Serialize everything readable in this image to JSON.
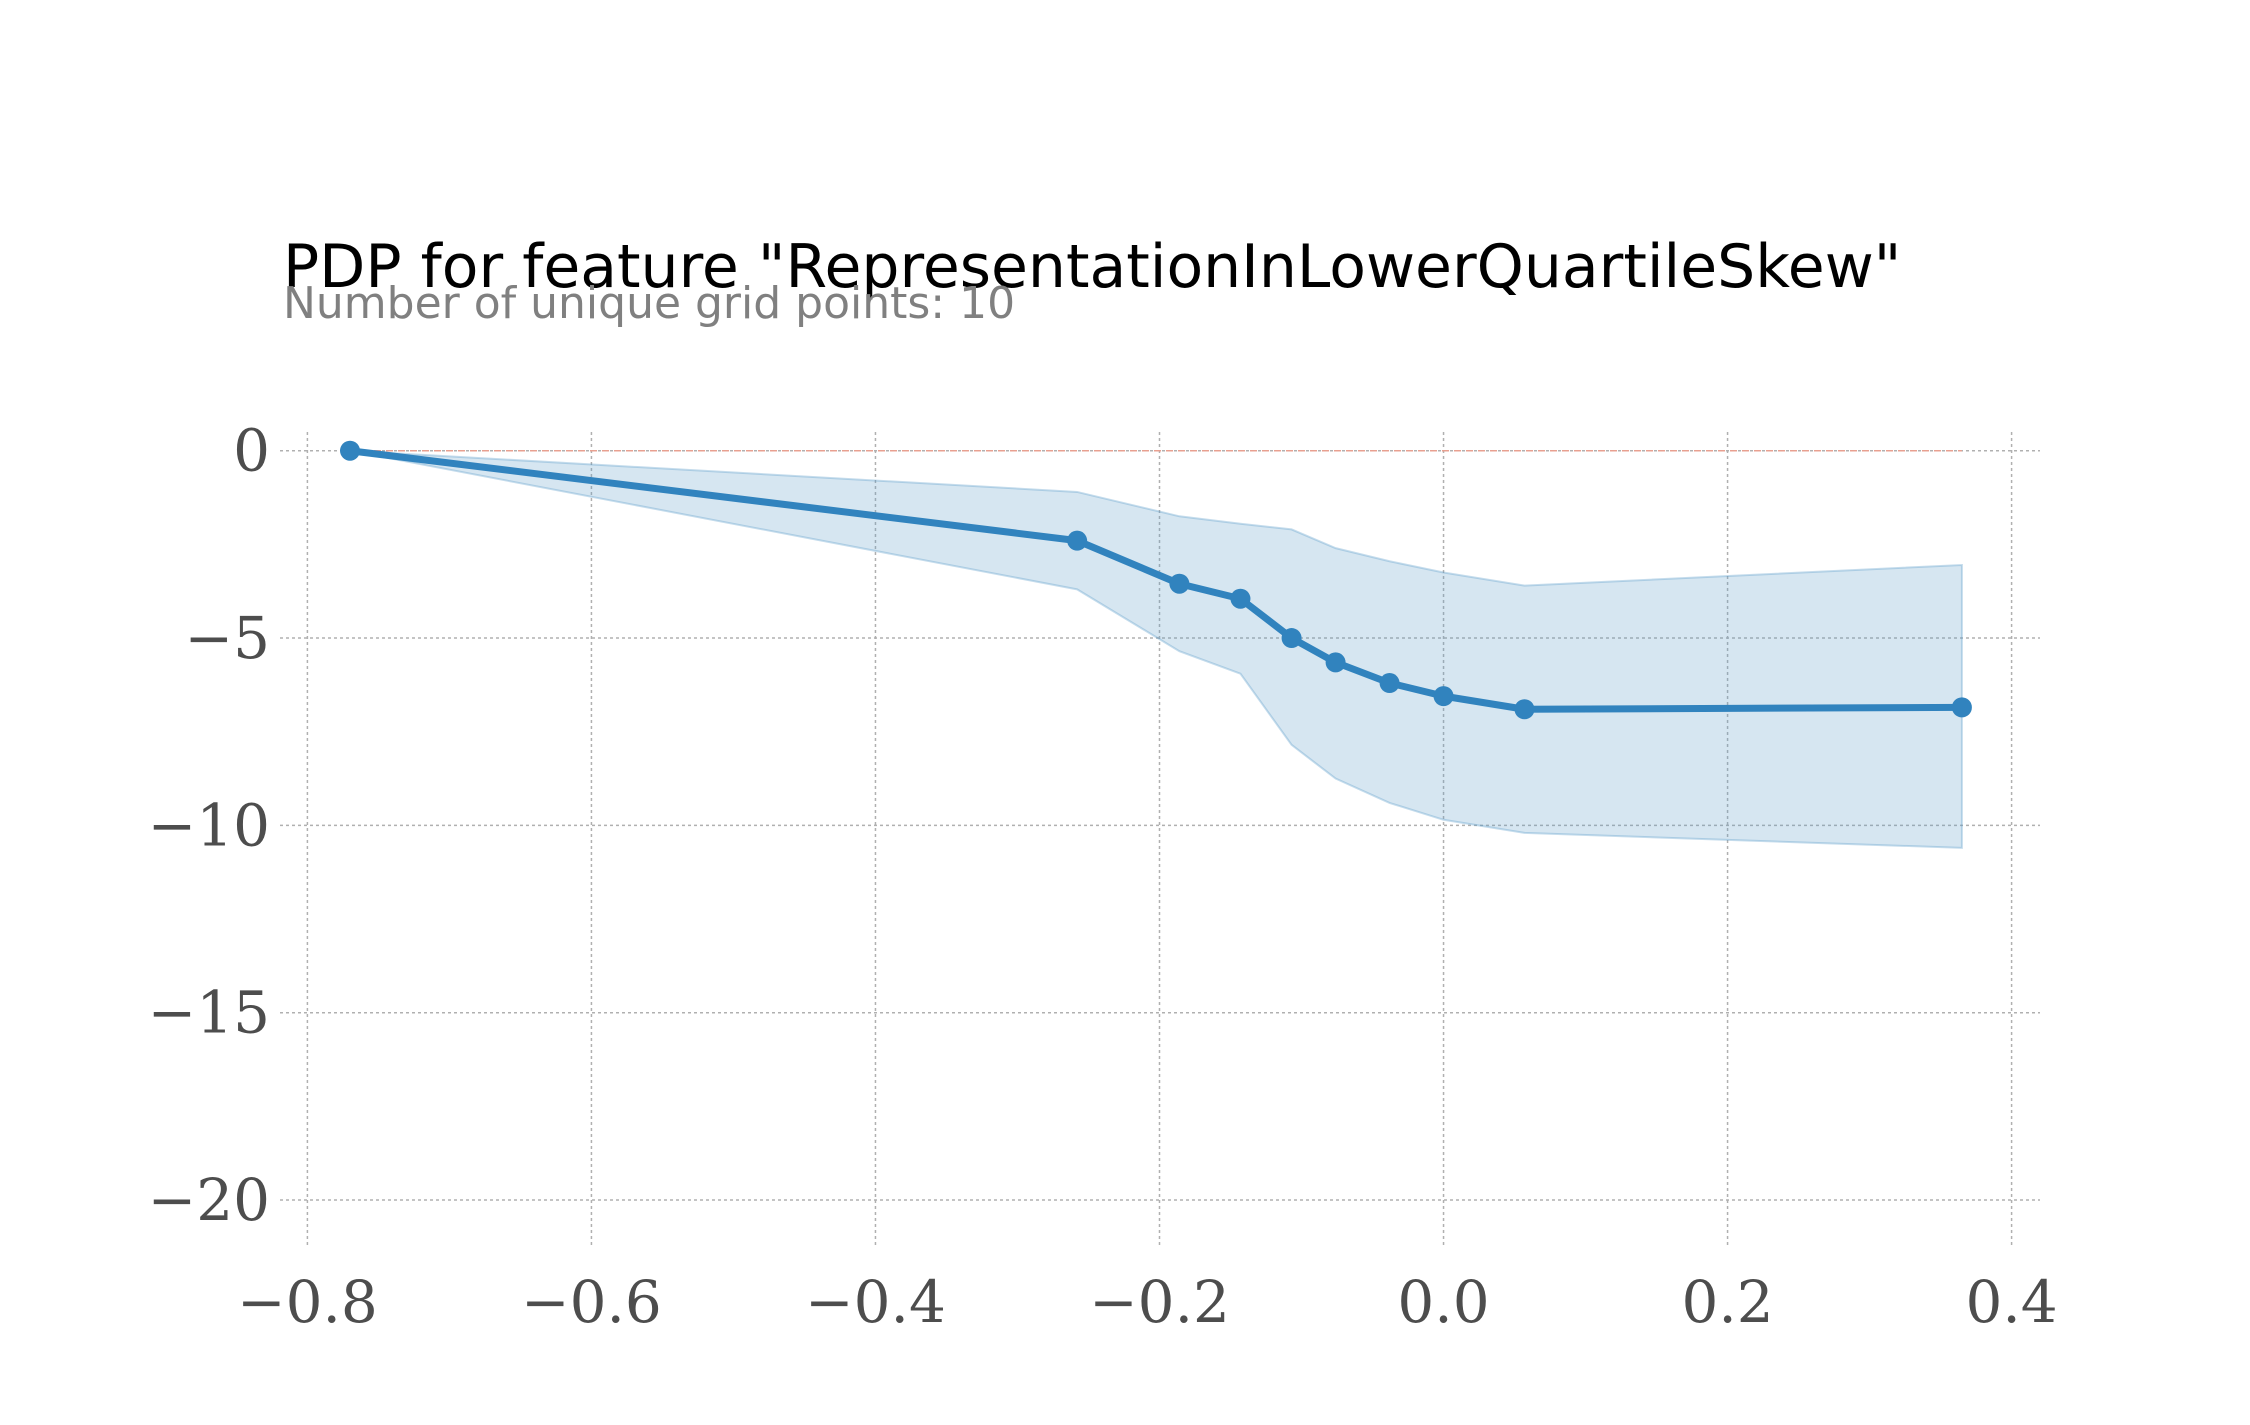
{
  "chart_data": {
    "type": "line",
    "title": "PDP for feature \"RepresentationInLowerQuartileSkew\"",
    "subtitle": "Number of unique grid points: 10",
    "xlabel": "",
    "ylabel": "",
    "xlim": [
      -0.82,
      0.42
    ],
    "ylim": [
      -21.2,
      0.5
    ],
    "x_ticks": [
      -0.8,
      -0.6,
      -0.4,
      -0.2,
      0.0,
      0.2,
      0.4
    ],
    "x_tick_labels": [
      "−0.8",
      "−0.6",
      "−0.4",
      "−0.2",
      "0.0",
      "0.2",
      "0.4"
    ],
    "y_ticks": [
      0,
      -5,
      -10,
      -15,
      -20
    ],
    "y_tick_labels": [
      "0",
      "−5",
      "−10",
      "−15",
      "−20"
    ],
    "grid": true,
    "baseline": 0,
    "series": [
      {
        "x": [
          -0.77,
          -0.258,
          -0.186,
          -0.143,
          -0.107,
          -0.076,
          -0.038,
          0.0,
          0.057,
          0.365
        ],
        "values": [
          0.0,
          -2.4,
          -3.55,
          -3.95,
          -5.0,
          -5.65,
          -6.2,
          -6.55,
          -6.9,
          -6.85
        ],
        "upper": [
          0.0,
          -1.1,
          -1.75,
          -1.95,
          -2.1,
          -2.6,
          -2.95,
          -3.25,
          -3.6,
          -3.05
        ],
        "lower": [
          0.0,
          -3.7,
          -5.35,
          -5.95,
          -7.85,
          -8.75,
          -9.4,
          -9.85,
          -10.2,
          -10.6
        ]
      }
    ],
    "colors": {
      "line": "#3183be",
      "band": "#5a9ac8",
      "baseline": "#e8a090",
      "grid": "#b0b0b0"
    }
  }
}
